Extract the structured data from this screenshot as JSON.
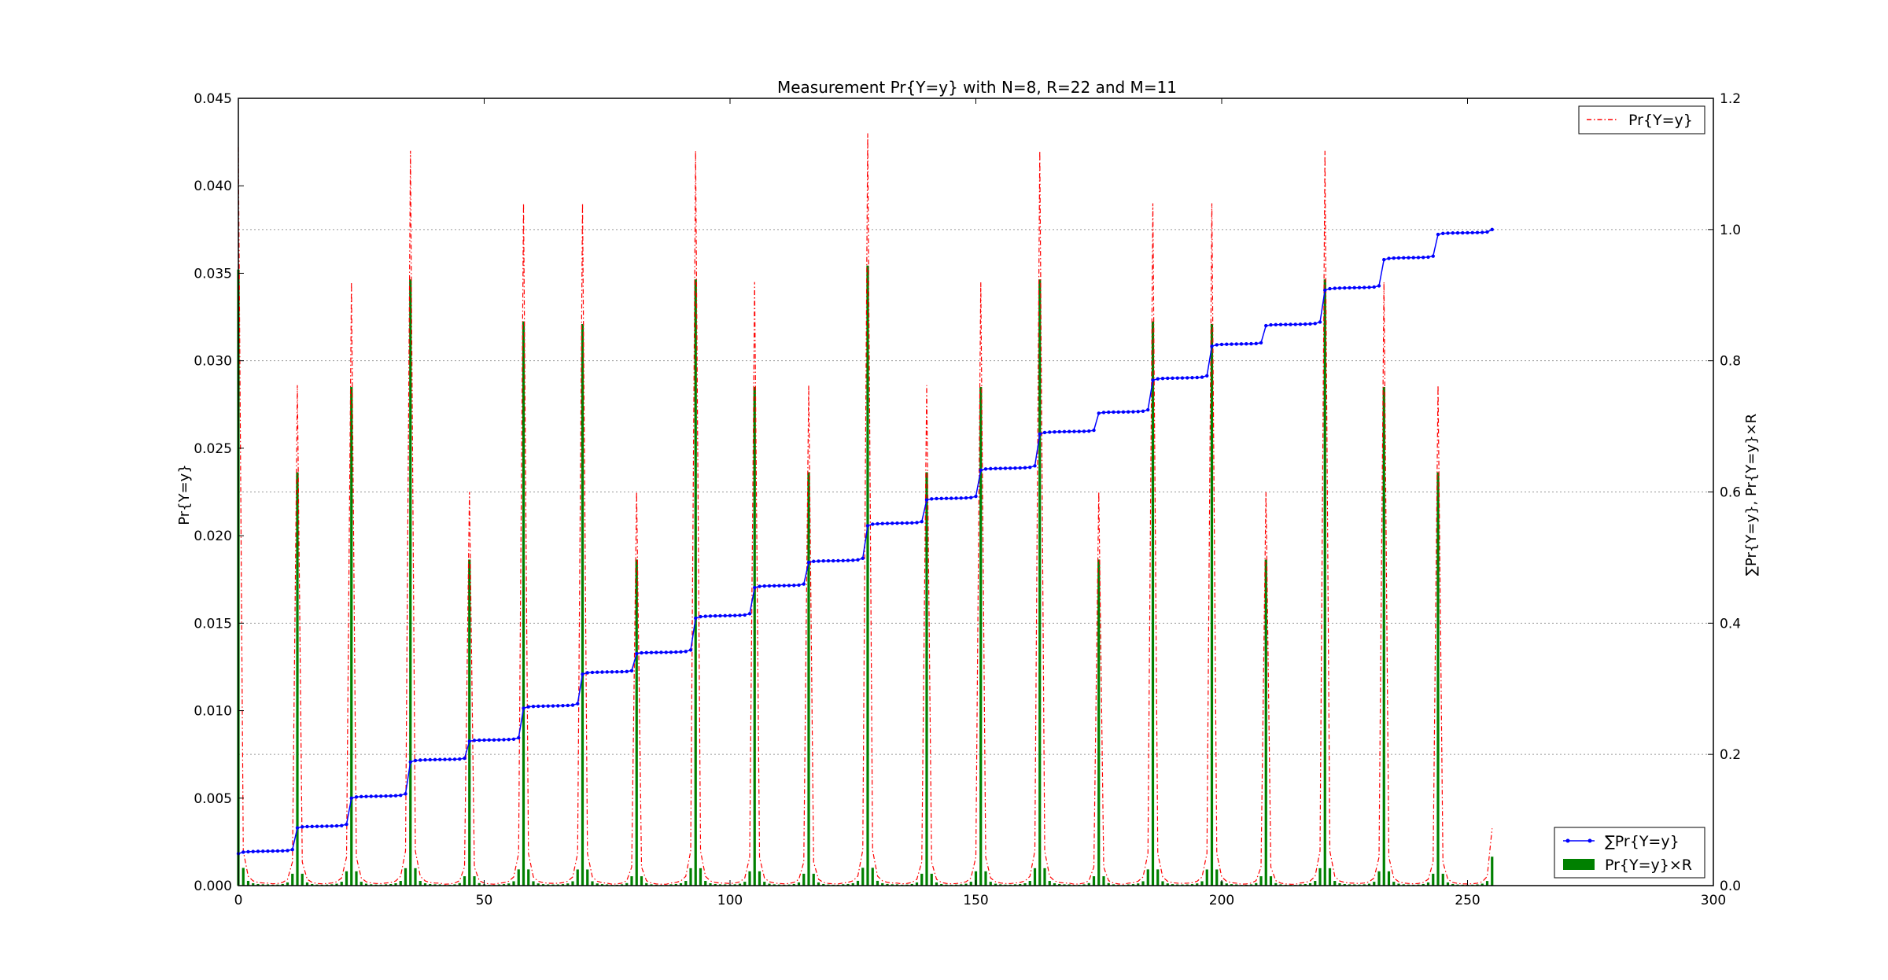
{
  "chart_data": {
    "type": "bar",
    "title": "Measurement Pr{Y=y} with N=8, R=22 and M=11",
    "xlim": [
      0,
      300
    ],
    "x_ticks": [
      "0",
      "50",
      "100",
      "150",
      "200",
      "250",
      "300"
    ],
    "left_axis": {
      "label": "Pr{Y=y}",
      "ylim": [
        0,
        0.045
      ],
      "ticks": [
        "0.000",
        "0.005",
        "0.010",
        "0.015",
        "0.020",
        "0.025",
        "0.030",
        "0.035",
        "0.040",
        "0.045"
      ]
    },
    "right_axis": {
      "label": "∑Pr{Y=y}, Pr{Y=y}×R",
      "ylim": [
        0,
        1.2
      ],
      "ticks": [
        "0.0",
        "0.2",
        "0.4",
        "0.6",
        "0.8",
        "1.0",
        "1.2"
      ],
      "grid": true
    },
    "peaks": [
      {
        "x": 0,
        "pr": 0.0422,
        "bar": 0.939
      },
      {
        "x": 12,
        "pr": 0.0286,
        "bar": 0.63
      },
      {
        "x": 23,
        "pr": 0.0345,
        "bar": 0.76
      },
      {
        "x": 35,
        "pr": 0.042,
        "bar": 0.924
      },
      {
        "x": 47,
        "pr": 0.0225,
        "bar": 0.497
      },
      {
        "x": 58,
        "pr": 0.039,
        "bar": 0.86
      },
      {
        "x": 70,
        "pr": 0.039,
        "bar": 0.856
      },
      {
        "x": 81,
        "pr": 0.0225,
        "bar": 0.497
      },
      {
        "x": 93,
        "pr": 0.042,
        "bar": 0.924
      },
      {
        "x": 105,
        "pr": 0.0345,
        "bar": 0.76
      },
      {
        "x": 116,
        "pr": 0.0286,
        "bar": 0.63
      },
      {
        "x": 128,
        "pr": 0.043,
        "bar": 0.945
      },
      {
        "x": 140,
        "pr": 0.0286,
        "bar": 0.63
      },
      {
        "x": 151,
        "pr": 0.0345,
        "bar": 0.76
      },
      {
        "x": 163,
        "pr": 0.042,
        "bar": 0.924
      },
      {
        "x": 175,
        "pr": 0.0225,
        "bar": 0.497
      },
      {
        "x": 186,
        "pr": 0.039,
        "bar": 0.86
      },
      {
        "x": 198,
        "pr": 0.039,
        "bar": 0.856
      },
      {
        "x": 209,
        "pr": 0.0225,
        "bar": 0.497
      },
      {
        "x": 221,
        "pr": 0.042,
        "bar": 0.924
      },
      {
        "x": 233,
        "pr": 0.0345,
        "bar": 0.76
      },
      {
        "x": 244,
        "pr": 0.0286,
        "bar": 0.63
      }
    ],
    "series": [
      {
        "name": "Pr{Y=y}",
        "axis": "left",
        "style": "dash-dot line",
        "color": "#ff0000"
      },
      {
        "name": "∑Pr{Y=y}",
        "axis": "right",
        "style": "line with dot markers",
        "color": "#0000ff"
      },
      {
        "name": "Pr{Y=y}×R",
        "axis": "right",
        "style": "bars",
        "color": "#008000"
      }
    ],
    "x_max": 255,
    "legends": {
      "top_right": [
        "Pr{Y=y}"
      ],
      "bottom_right": [
        "∑Pr{Y=y}",
        "Pr{Y=y}×R"
      ]
    }
  }
}
